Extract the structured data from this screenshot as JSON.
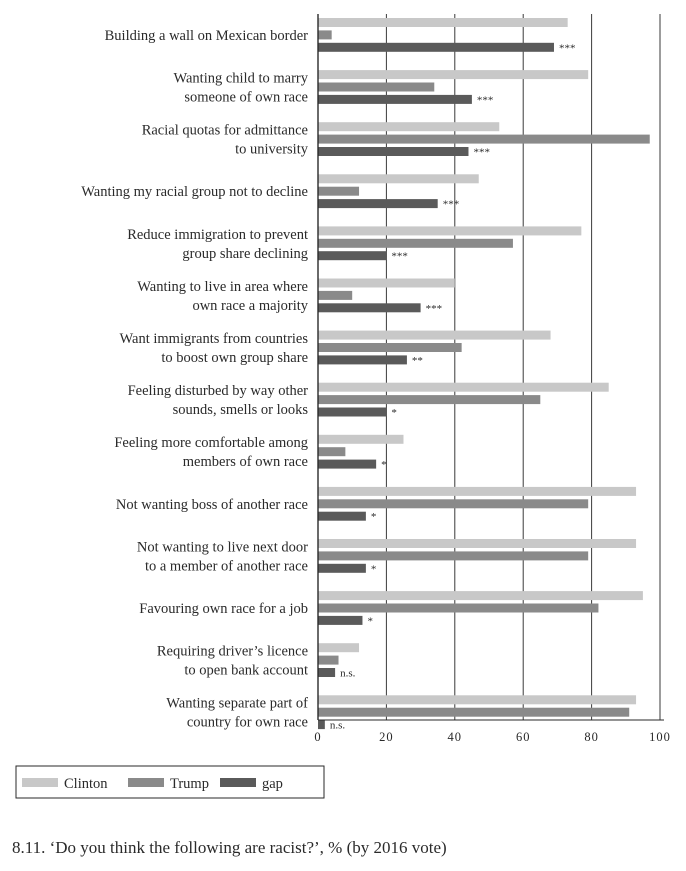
{
  "chart_data": {
    "type": "bar",
    "orientation": "horizontal",
    "caption": "8.11. ‘Do you think the following are racist?’, % (by 2016 vote)",
    "xlim": [
      0,
      100
    ],
    "xticks": [
      "0",
      "20",
      "40",
      "60",
      "80",
      "100"
    ],
    "grid": true,
    "legend_position": "bottom-left",
    "categories": [
      [
        "Building a wall on Mexican border"
      ],
      [
        "Wanting child to marry",
        "someone of own race"
      ],
      [
        "Racial quotas for admittance",
        "to university"
      ],
      [
        "Wanting my racial group not to decline"
      ],
      [
        "Reduce immigration to prevent",
        "group share declining"
      ],
      [
        "Wanting to live in area where",
        "own race a majority"
      ],
      [
        "Want immigrants from countries",
        "to boost own group share"
      ],
      [
        "Feeling disturbed by way other",
        "sounds, smells or looks"
      ],
      [
        "Feeling more comfortable among",
        "members of own race"
      ],
      [
        "Not wanting boss of another race"
      ],
      [
        "Not wanting to live next door",
        "to a member of another race"
      ],
      [
        "Favouring own race for a job"
      ],
      [
        "Requiring driver’s licence",
        "to open bank account"
      ],
      [
        "Wanting separate part of",
        "country for own race"
      ]
    ],
    "series": [
      {
        "name": "Clinton",
        "color": "#c8c8c8",
        "values": [
          73,
          79,
          53,
          47,
          77,
          40,
          68,
          85,
          25,
          93,
          93,
          95,
          12,
          93
        ]
      },
      {
        "name": "Trump",
        "color": "#8a8a8a",
        "values": [
          4,
          34,
          97,
          12,
          57,
          10,
          42,
          65,
          8,
          79,
          79,
          82,
          6,
          91
        ]
      },
      {
        "name": "gap",
        "color": "#5a5a5a",
        "values": [
          69,
          45,
          44,
          35,
          20,
          30,
          26,
          20,
          17,
          14,
          14,
          13,
          5,
          2
        ]
      }
    ],
    "significance": [
      "***",
      "***",
      "***",
      "***",
      "***",
      "***",
      "**",
      "*",
      "*",
      "*",
      "*",
      "*",
      "n.s.",
      "n.s."
    ]
  }
}
